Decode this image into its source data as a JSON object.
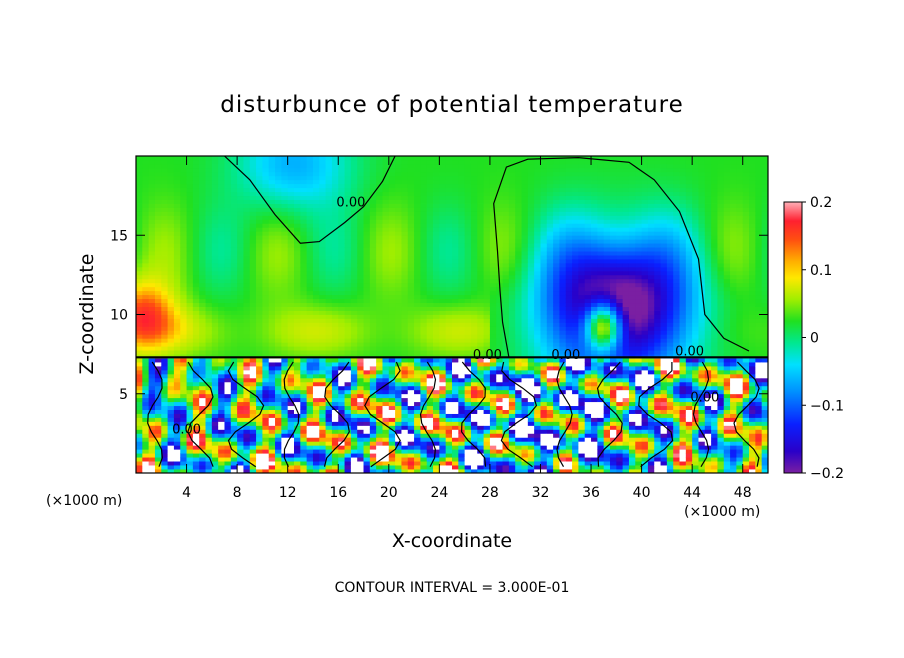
{
  "chart_data": {
    "type": "heatmap",
    "title": "disturbunce of potential temperature",
    "xlabel": "X-coordinate",
    "ylabel": "Z-coordinate",
    "x_unit": "(×1000 m)",
    "y_unit": "(×1000 m)",
    "xlim": [
      0,
      50
    ],
    "ylim": [
      0,
      20
    ],
    "x_ticks": [
      4,
      8,
      12,
      16,
      20,
      24,
      28,
      32,
      36,
      40,
      44,
      48
    ],
    "y_ticks": [
      5,
      10,
      15
    ],
    "colorbar": {
      "min": -0.2,
      "max": 0.2,
      "ticks": [
        0.2,
        0.1,
        0,
        -0.1,
        -0.2
      ],
      "tick_labels": [
        "0.2",
        "0.1",
        "0",
        "−0.1",
        "−0.2"
      ]
    },
    "contour_interval_text": "CONTOUR INTERVAL = 3.000E-01",
    "contour_label": "0.00",
    "contour_labels": [
      {
        "text": "0.00",
        "x": 17.0,
        "z": 16.8
      },
      {
        "text": "0.00",
        "x": 27.8,
        "z": 7.2
      },
      {
        "text": "0.00",
        "x": 34.0,
        "z": 7.2
      },
      {
        "text": "0.00",
        "x": 43.8,
        "z": 7.4
      },
      {
        "text": "0.00",
        "x": 45.0,
        "z": 4.5
      },
      {
        "text": "0.00",
        "x": 4.0,
        "z": 2.5
      }
    ],
    "regions": {
      "upper_layer_z": [
        7.3,
        20
      ],
      "lower_layer_z": [
        0,
        7.3
      ],
      "cold_anomaly_center": {
        "x": 38,
        "z": 10.5,
        "value": -0.2
      },
      "warm_anomaly_left": {
        "x": 0.5,
        "z": 10.0,
        "value": 0.12
      },
      "weak_cold_top": {
        "x": 12.5,
        "z": 19.5,
        "value": -0.07
      }
    }
  }
}
